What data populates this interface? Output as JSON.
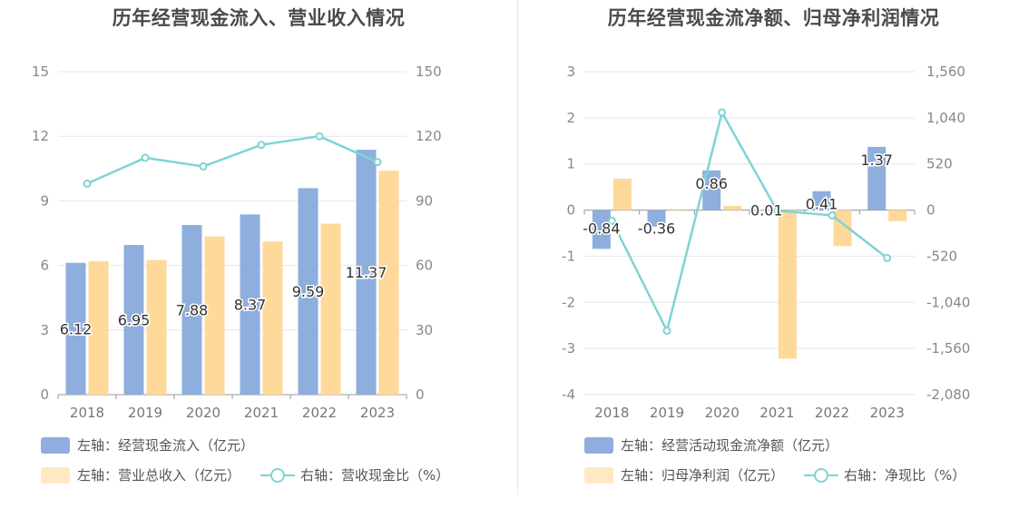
{
  "charts": [
    {
      "title": "历年经营现金流入、营业收入情况",
      "legend": [
        {
          "label": "左轴：经营现金流入（亿元）",
          "kind": "bar",
          "color": "#8eaedd"
        },
        {
          "label": "左轴：营业总收入（亿元）",
          "kind": "bar",
          "color": "#ffe4bb"
        },
        {
          "label": "右轴：营收现金比（%）",
          "kind": "line",
          "color": "#7fd3d6"
        }
      ]
    },
    {
      "title": "历年经营现金流净额、归母净利润情况",
      "legend": [
        {
          "label": "左轴：经营活动现金流净额（亿元）",
          "kind": "bar",
          "color": "#8eaedd"
        },
        {
          "label": "左轴：归母净利润（亿元）",
          "kind": "bar",
          "color": "#ffe4bb"
        },
        {
          "label": "右轴：净现比（%）",
          "kind": "line",
          "color": "#7fd3d6"
        }
      ]
    }
  ],
  "chart_data": [
    {
      "type": "bar",
      "title": "历年经营现金流入、营业收入情况",
      "categories": [
        "2018",
        "2019",
        "2020",
        "2021",
        "2022",
        "2023"
      ],
      "y_left": {
        "min": 0,
        "max": 15,
        "ticks": [
          "0",
          "3",
          "6",
          "9",
          "12",
          "15"
        ]
      },
      "y_right": {
        "min": 0,
        "max": 150,
        "ticks": [
          "0",
          "30",
          "60",
          "90",
          "120",
          "150"
        ]
      },
      "grid": true,
      "legend_position": "bottom-left",
      "series": [
        {
          "name": "左轴：经营现金流入（亿元）",
          "kind": "bar",
          "axis": "left",
          "color": "#8eaedd",
          "values": [
            6.12,
            6.95,
            7.88,
            8.37,
            9.59,
            11.37
          ],
          "labels": [
            "6.12",
            "6.95",
            "7.88",
            "8.37",
            "9.59",
            "11.37"
          ]
        },
        {
          "name": "左轴：营业总收入（亿元）",
          "kind": "bar",
          "axis": "left",
          "color": "#ffd999",
          "values": [
            6.2,
            6.25,
            7.35,
            7.12,
            7.94,
            10.4
          ]
        },
        {
          "name": "右轴：营收现金比（%）",
          "kind": "line",
          "axis": "right",
          "color": "#7fd3d6",
          "values": [
            98,
            110,
            106,
            116,
            120,
            108
          ]
        }
      ]
    },
    {
      "type": "bar",
      "title": "历年经营现金流净额、归母净利润情况",
      "categories": [
        "2018",
        "2019",
        "2020",
        "2021",
        "2022",
        "2023"
      ],
      "y_left": {
        "min": -4,
        "max": 3,
        "ticks": [
          "-4",
          "-3",
          "-2",
          "-1",
          "0",
          "1",
          "2",
          "3"
        ]
      },
      "y_right": {
        "min": -2080,
        "max": 1560,
        "ticks": [
          "-2,080",
          "-1,560",
          "-1,040",
          "-520",
          "0",
          "520",
          "1,040",
          "1,560"
        ]
      },
      "grid": true,
      "legend_position": "bottom-left",
      "series": [
        {
          "name": "左轴：经营活动现金流净额（亿元）",
          "kind": "bar",
          "axis": "left",
          "color": "#8eaedd",
          "values": [
            -0.84,
            -0.36,
            0.86,
            0.01,
            0.41,
            1.37
          ],
          "labels": [
            "-0.84",
            "-0.36",
            "0.86",
            "0.01",
            "0.41",
            "1.37"
          ]
        },
        {
          "name": "左轴：归母净利润（亿元）",
          "kind": "bar",
          "axis": "left",
          "color": "#ffd999",
          "values": [
            0.68,
            0.02,
            0.09,
            -3.22,
            -0.78,
            -0.24
          ]
        },
        {
          "name": "右轴：净现比（%）",
          "kind": "line",
          "axis": "right",
          "color": "#7fd3d6",
          "values": [
            -120,
            -1360,
            1100,
            -5,
            -60,
            -540
          ]
        }
      ]
    }
  ]
}
